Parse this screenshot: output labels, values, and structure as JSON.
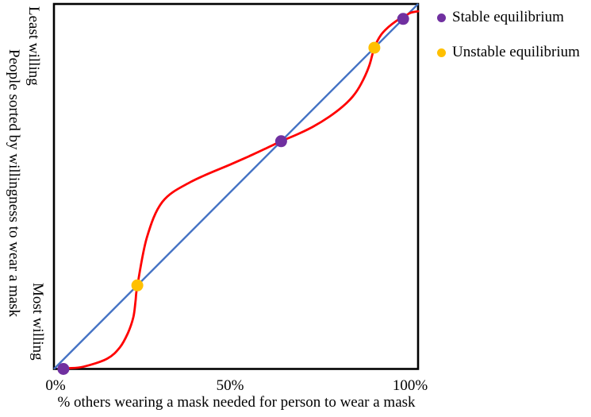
{
  "chart_data": {
    "type": "line",
    "grid": "off",
    "legend_position": "top-right",
    "axis_color": "#000000",
    "x_axis": {
      "label": "% others wearing a mask needed for person to wear a mask",
      "ticks": [
        "0%",
        "50%",
        "100%"
      ],
      "range": [
        0,
        100
      ]
    },
    "y_axis": {
      "label": "People sorted by willingness to wear a mask",
      "top_label": "Least willing",
      "bottom_label": "Most willing",
      "range": [
        0,
        100
      ]
    },
    "series": [
      {
        "name": "diagonal-equality-line",
        "color": "#4472C4",
        "points": [
          [
            0,
            0
          ],
          [
            100,
            100
          ]
        ]
      },
      {
        "name": "cumulative-willingness-s-curve",
        "color": "#FF0000",
        "points": [
          [
            2.6,
            0.1
          ],
          [
            3.9,
            0.2
          ],
          [
            8.1,
            0.6
          ],
          [
            14.6,
            2.8
          ],
          [
            18.1,
            5.9
          ],
          [
            20.3,
            9.8
          ],
          [
            21.8,
            14.2
          ],
          [
            22.4,
            18.5
          ],
          [
            22.9,
            22.7
          ],
          [
            25.5,
            35.9
          ],
          [
            29.8,
            45.8
          ],
          [
            37.5,
            51.2
          ],
          [
            48.4,
            56.0
          ],
          [
            53.4,
            58.2
          ],
          [
            58.6,
            60.6
          ],
          [
            62.4,
            62.4
          ],
          [
            66.9,
            64.3
          ],
          [
            71.2,
            66.4
          ],
          [
            75.6,
            69.1
          ],
          [
            79.3,
            71.9
          ],
          [
            82.1,
            74.7
          ],
          [
            84.3,
            78.0
          ],
          [
            86.5,
            82.8
          ],
          [
            88.0,
            88.0
          ],
          [
            89.8,
            91.5
          ],
          [
            91.9,
            93.7
          ],
          [
            94.1,
            95.4
          ],
          [
            96.1,
            96.5
          ],
          [
            98.0,
            97.6
          ],
          [
            100.0,
            98.0
          ]
        ]
      }
    ],
    "equilibria": {
      "stable": [
        [
          2.6,
          0
        ],
        [
          62.4,
          62.4
        ],
        [
          95.9,
          95.9
        ]
      ],
      "unstable": [
        [
          22.9,
          22.9
        ],
        [
          88.0,
          88.0
        ]
      ]
    },
    "legend": [
      {
        "label": "Stable equilibrium",
        "color": "#7030A0"
      },
      {
        "label": "Unstable equilibrium",
        "color": "#FFC000"
      }
    ]
  }
}
